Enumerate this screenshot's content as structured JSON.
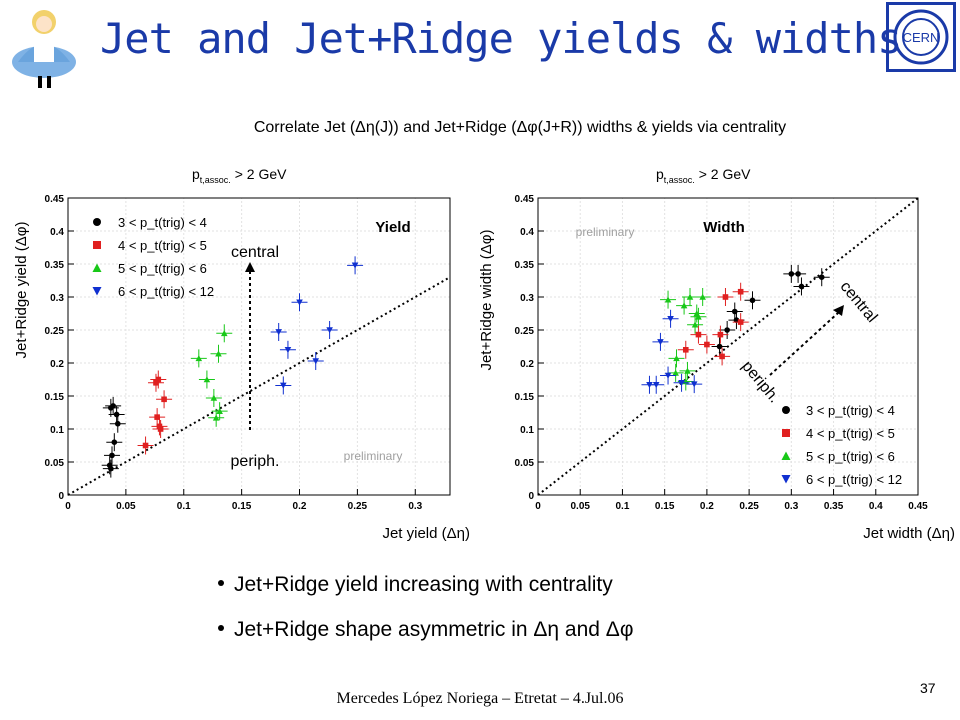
{
  "slide": {
    "title": "Jet and Jet+Ridge yields & widths",
    "subtitle": "Correlate Jet (Δη(J)) and Jet+Ridge (Δφ(J+R)) widths & yields via centrality",
    "bullets": [
      "Jet+Ridge yield increasing with centrality",
      "Jet+Ridge shape asymmetric in Δη and Δφ"
    ],
    "footer": "Mercedes López Noriega – Etretat – 4.Jul.06",
    "page_number": "37",
    "logo_text": "CERN",
    "accent_color": "#1a3aa8"
  },
  "chart_data": [
    {
      "type": "scatter",
      "title": "Yield",
      "cut_label": "p",
      "cut_sub": "t,assoc.",
      "cut_rest": " > 2 GeV",
      "xlabel": "Jet yield (Δη)",
      "ylabel": "Jet+Ridge yield (Δφ)",
      "xlim": [
        0,
        0.33
      ],
      "ylim": [
        0,
        0.45
      ],
      "xticks": [
        "0",
        "0.05",
        "0.1",
        "0.15",
        "0.2",
        "0.25",
        "0.3"
      ],
      "yticks": [
        "0",
        "0.05",
        "0.1",
        "0.15",
        "0.2",
        "0.25",
        "0.3",
        "0.35",
        "0.4",
        "0.45"
      ],
      "diagonal": true,
      "annotations": {
        "central": "central",
        "periph": "periph.",
        "preliminary": "preliminary"
      },
      "legend_placement": "top-left",
      "series": [
        {
          "name": "3 < p_t(trig) < 4",
          "color": "#000000",
          "marker": "circle",
          "points": [
            [
              0.037,
              0.132
            ],
            [
              0.039,
              0.135
            ],
            [
              0.042,
              0.122
            ],
            [
              0.043,
              0.108
            ],
            [
              0.04,
              0.08
            ],
            [
              0.038,
              0.06
            ],
            [
              0.036,
              0.045
            ],
            [
              0.037,
              0.04
            ]
          ]
        },
        {
          "name": "4 < p_t(trig) < 5",
          "color": "#e02020",
          "marker": "square",
          "points": [
            [
              0.076,
              0.17
            ],
            [
              0.078,
              0.175
            ],
            [
              0.083,
              0.145
            ],
            [
              0.077,
              0.118
            ],
            [
              0.079,
              0.104
            ],
            [
              0.08,
              0.1
            ],
            [
              0.067,
              0.075
            ]
          ]
        },
        {
          "name": "5 < p_t(trig) < 6",
          "color": "#18c818",
          "marker": "triangle",
          "points": [
            [
              0.135,
              0.245
            ],
            [
              0.13,
              0.214
            ],
            [
              0.113,
              0.207
            ],
            [
              0.12,
              0.175
            ],
            [
              0.126,
              0.147
            ],
            [
              0.131,
              0.127
            ],
            [
              0.128,
              0.117
            ]
          ]
        },
        {
          "name": "6 < p_t(trig) < 12",
          "color": "#1030d0",
          "marker": "triangle-down",
          "points": [
            [
              0.248,
              0.348
            ],
            [
              0.2,
              0.292
            ],
            [
              0.182,
              0.247
            ],
            [
              0.19,
              0.22
            ],
            [
              0.226,
              0.25
            ],
            [
              0.214,
              0.203
            ],
            [
              0.186,
              0.166
            ]
          ]
        }
      ]
    },
    {
      "type": "scatter",
      "title": "Width",
      "cut_label": "p",
      "cut_sub": "t,assoc.",
      "cut_rest": " > 2 GeV",
      "xlabel": "Jet width (Δη)",
      "ylabel": "Jet+Ridge width (Δφ)",
      "xlim": [
        0,
        0.45
      ],
      "ylim": [
        0,
        0.45
      ],
      "xticks": [
        "0",
        "0.05",
        "0.1",
        "0.15",
        "0.2",
        "0.25",
        "0.3",
        "0.35",
        "0.4",
        "0.45"
      ],
      "yticks": [
        "0",
        "0.05",
        "0.1",
        "0.15",
        "0.2",
        "0.25",
        "0.3",
        "0.35",
        "0.4",
        "0.45"
      ],
      "diagonal": true,
      "annotations": {
        "central": "central",
        "periph": "periph.",
        "preliminary": "preliminary"
      },
      "legend_placement": "bottom-right",
      "series": [
        {
          "name": "3 < p_t(trig) < 4",
          "color": "#000000",
          "marker": "circle",
          "points": [
            [
              0.3,
              0.335
            ],
            [
              0.308,
              0.335
            ],
            [
              0.336,
              0.33
            ],
            [
              0.312,
              0.316
            ],
            [
              0.254,
              0.295
            ],
            [
              0.233,
              0.278
            ],
            [
              0.235,
              0.265
            ],
            [
              0.224,
              0.25
            ],
            [
              0.215,
              0.225
            ]
          ]
        },
        {
          "name": "4 < p_t(trig) < 5",
          "color": "#e02020",
          "marker": "square",
          "points": [
            [
              0.222,
              0.3
            ],
            [
              0.24,
              0.308
            ],
            [
              0.24,
              0.262
            ],
            [
              0.216,
              0.243
            ],
            [
              0.19,
              0.243
            ],
            [
              0.175,
              0.22
            ],
            [
              0.2,
              0.228
            ],
            [
              0.218,
              0.21
            ]
          ]
        },
        {
          "name": "5 < p_t(trig) < 6",
          "color": "#18c818",
          "marker": "triangle",
          "points": [
            [
              0.154,
              0.296
            ],
            [
              0.18,
              0.3
            ],
            [
              0.195,
              0.3
            ],
            [
              0.173,
              0.287
            ],
            [
              0.188,
              0.275
            ],
            [
              0.19,
              0.27
            ],
            [
              0.186,
              0.258
            ],
            [
              0.164,
              0.207
            ],
            [
              0.177,
              0.188
            ],
            [
              0.163,
              0.185
            ],
            [
              0.175,
              0.172
            ]
          ]
        },
        {
          "name": "6 < p_t(trig) < 12",
          "color": "#1030d0",
          "marker": "triangle-down",
          "points": [
            [
              0.145,
              0.232
            ],
            [
              0.157,
              0.267
            ],
            [
              0.154,
              0.181
            ],
            [
              0.17,
              0.17
            ],
            [
              0.185,
              0.168
            ],
            [
              0.132,
              0.167
            ],
            [
              0.14,
              0.167
            ]
          ]
        }
      ]
    }
  ]
}
